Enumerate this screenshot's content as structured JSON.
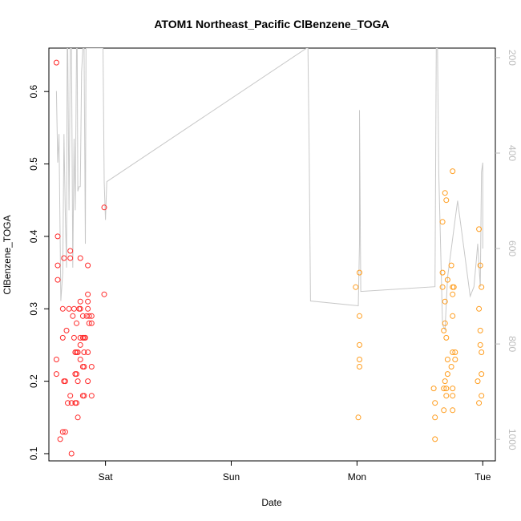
{
  "chart_data": {
    "type": "scatter",
    "title": "ATOM1 Northeast_Pacific ClBenzene_TOGA",
    "xlabel": "Date",
    "ylabel": "ClBenzene_TOGA",
    "x_ticks": [
      {
        "label": "Sat",
        "x": 1.0
      },
      {
        "label": "Sun",
        "x": 2.0
      },
      {
        "label": "Mon",
        "x": 3.0
      },
      {
        "label": "Tue",
        "x": 4.0
      }
    ],
    "xlim": [
      0.55,
      4.1
    ],
    "y_ticks": [
      0.1,
      0.2,
      0.3,
      0.4,
      0.5,
      0.6
    ],
    "ylim": [
      0.09,
      0.66
    ],
    "y2_ticks": [
      200,
      400,
      600,
      800,
      1000
    ],
    "y2lim": [
      1045,
      180
    ],
    "colors": {
      "series_red": "#ff2a2a",
      "series_orange": "#ff9d1e",
      "line": "#c8c8c8",
      "axis": "#000000",
      "y2_axis": "#bdbdbd"
    },
    "series": [
      {
        "color": "series_red",
        "marker": "open-circle",
        "points": [
          [
            0.61,
            0.64
          ],
          [
            0.62,
            0.4
          ],
          [
            0.62,
            0.36
          ],
          [
            0.62,
            0.34
          ],
          [
            0.61,
            0.23
          ],
          [
            0.61,
            0.21
          ],
          [
            0.64,
            0.12
          ],
          [
            0.66,
            0.13
          ],
          [
            0.67,
            0.37
          ],
          [
            0.66,
            0.3
          ],
          [
            0.66,
            0.26
          ],
          [
            0.67,
            0.2
          ],
          [
            0.68,
            0.2
          ],
          [
            0.68,
            0.13
          ],
          [
            0.69,
            0.27
          ],
          [
            0.7,
            0.17
          ],
          [
            0.71,
            0.3
          ],
          [
            0.72,
            0.38
          ],
          [
            0.72,
            0.37
          ],
          [
            0.72,
            0.18
          ],
          [
            0.73,
            0.1
          ],
          [
            0.73,
            0.17
          ],
          [
            0.74,
            0.29
          ],
          [
            0.75,
            0.3
          ],
          [
            0.75,
            0.26
          ],
          [
            0.76,
            0.24
          ],
          [
            0.76,
            0.21
          ],
          [
            0.76,
            0.17
          ],
          [
            0.77,
            0.28
          ],
          [
            0.77,
            0.24
          ],
          [
            0.77,
            0.21
          ],
          [
            0.77,
            0.17
          ],
          [
            0.78,
            0.24
          ],
          [
            0.78,
            0.2
          ],
          [
            0.78,
            0.15
          ],
          [
            0.79,
            0.3
          ],
          [
            0.8,
            0.37
          ],
          [
            0.8,
            0.31
          ],
          [
            0.8,
            0.3
          ],
          [
            0.8,
            0.26
          ],
          [
            0.8,
            0.25
          ],
          [
            0.8,
            0.23
          ],
          [
            0.82,
            0.29
          ],
          [
            0.82,
            0.26
          ],
          [
            0.82,
            0.22
          ],
          [
            0.82,
            0.18
          ],
          [
            0.83,
            0.26
          ],
          [
            0.83,
            0.24
          ],
          [
            0.83,
            0.22
          ],
          [
            0.83,
            0.18
          ],
          [
            0.84,
            0.26
          ],
          [
            0.85,
            0.29
          ],
          [
            0.86,
            0.36
          ],
          [
            0.86,
            0.32
          ],
          [
            0.86,
            0.31
          ],
          [
            0.86,
            0.3
          ],
          [
            0.86,
            0.24
          ],
          [
            0.86,
            0.2
          ],
          [
            0.87,
            0.29
          ],
          [
            0.87,
            0.28
          ],
          [
            0.89,
            0.29
          ],
          [
            0.89,
            0.28
          ],
          [
            0.89,
            0.22
          ],
          [
            0.89,
            0.18
          ],
          [
            0.99,
            0.44
          ],
          [
            0.99,
            0.32
          ]
        ]
      },
      {
        "color": "series_orange",
        "marker": "open-circle",
        "points": [
          [
            2.99,
            0.33
          ],
          [
            3.01,
            0.15
          ],
          [
            3.02,
            0.35
          ],
          [
            3.02,
            0.29
          ],
          [
            3.02,
            0.25
          ],
          [
            3.02,
            0.23
          ],
          [
            3.02,
            0.22
          ],
          [
            3.61,
            0.19
          ],
          [
            3.62,
            0.17
          ],
          [
            3.62,
            0.15
          ],
          [
            3.62,
            0.12
          ],
          [
            3.68,
            0.42
          ],
          [
            3.68,
            0.35
          ],
          [
            3.68,
            0.33
          ],
          [
            3.69,
            0.27
          ],
          [
            3.69,
            0.19
          ],
          [
            3.69,
            0.16
          ],
          [
            3.7,
            0.46
          ],
          [
            3.7,
            0.31
          ],
          [
            3.7,
            0.28
          ],
          [
            3.7,
            0.2
          ],
          [
            3.71,
            0.45
          ],
          [
            3.71,
            0.26
          ],
          [
            3.71,
            0.19
          ],
          [
            3.71,
            0.18
          ],
          [
            3.72,
            0.34
          ],
          [
            3.72,
            0.23
          ],
          [
            3.72,
            0.21
          ],
          [
            3.75,
            0.36
          ],
          [
            3.75,
            0.22
          ],
          [
            3.76,
            0.49
          ],
          [
            3.76,
            0.33
          ],
          [
            3.76,
            0.32
          ],
          [
            3.76,
            0.29
          ],
          [
            3.76,
            0.24
          ],
          [
            3.76,
            0.19
          ],
          [
            3.76,
            0.18
          ],
          [
            3.76,
            0.16
          ],
          [
            3.77,
            0.33
          ],
          [
            3.78,
            0.24
          ],
          [
            3.78,
            0.23
          ],
          [
            3.96,
            0.2
          ],
          [
            3.97,
            0.41
          ],
          [
            3.97,
            0.3
          ],
          [
            3.97,
            0.17
          ],
          [
            3.98,
            0.36
          ],
          [
            3.98,
            0.27
          ],
          [
            3.98,
            0.25
          ],
          [
            3.99,
            0.33
          ],
          [
            3.99,
            0.24
          ],
          [
            3.99,
            0.21
          ],
          [
            3.99,
            0.18
          ]
        ]
      },
      {
        "type": "line",
        "color": "line",
        "axis": "right",
        "points": [
          [
            0.61,
            270
          ],
          [
            0.62,
            420
          ],
          [
            0.63,
            360
          ],
          [
            0.645,
            710
          ],
          [
            0.66,
            650
          ],
          [
            0.67,
            360
          ],
          [
            0.68,
            520
          ],
          [
            0.69,
            640
          ],
          [
            0.695,
            180
          ],
          [
            0.7,
            180
          ],
          [
            0.71,
            520
          ],
          [
            0.72,
            180
          ],
          [
            0.73,
            180
          ],
          [
            0.74,
            640
          ],
          [
            0.75,
            370
          ],
          [
            0.76,
            520
          ],
          [
            0.77,
            180
          ],
          [
            0.775,
            180
          ],
          [
            0.78,
            480
          ],
          [
            0.79,
            470
          ],
          [
            0.8,
            470
          ],
          [
            0.81,
            230
          ],
          [
            0.82,
            180
          ],
          [
            0.83,
            180
          ],
          [
            0.84,
            590
          ],
          [
            0.845,
            180
          ],
          [
            0.85,
            180
          ],
          [
            0.87,
            180
          ],
          [
            0.88,
            180
          ],
          [
            0.89,
            180
          ],
          [
            0.9,
            180
          ],
          [
            0.92,
            180
          ],
          [
            0.95,
            180
          ],
          [
            0.98,
            180
          ],
          [
            0.99,
            460
          ],
          [
            1.0,
            540
          ],
          [
            1.01,
            460
          ],
          [
            2.6,
            180
          ],
          [
            2.61,
            180
          ],
          [
            2.62,
            410
          ],
          [
            2.63,
            710
          ],
          [
            3.01,
            720
          ],
          [
            3.02,
            590
          ],
          [
            3.02,
            310
          ],
          [
            3.03,
            690
          ],
          [
            3.62,
            680
          ],
          [
            3.63,
            180
          ],
          [
            3.64,
            180
          ],
          [
            3.65,
            440
          ],
          [
            3.68,
            760
          ],
          [
            3.7,
            770
          ],
          [
            3.72,
            660
          ],
          [
            3.75,
            600
          ],
          [
            3.77,
            560
          ],
          [
            3.8,
            500
          ],
          [
            3.85,
            600
          ],
          [
            3.9,
            700
          ],
          [
            3.93,
            680
          ],
          [
            3.95,
            620
          ],
          [
            3.96,
            590
          ],
          [
            3.98,
            680
          ],
          [
            3.99,
            440
          ],
          [
            4.0,
            420
          ],
          [
            4.0,
            600
          ]
        ]
      }
    ]
  }
}
